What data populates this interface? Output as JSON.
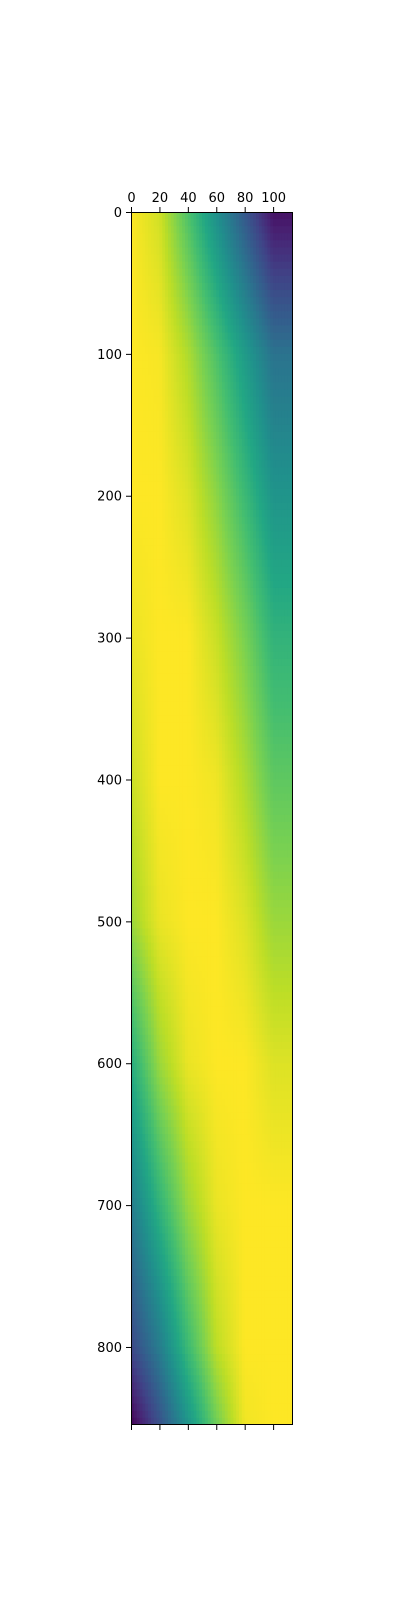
{
  "chart_data": {
    "type": "heatmap",
    "title": "",
    "xlabel": "",
    "ylabel": "",
    "colormap": "viridis",
    "x_range": [
      0,
      114
    ],
    "y_range": [
      0,
      855
    ],
    "x_axis_position": "top",
    "y_axis_inverted": true,
    "grid": false,
    "colorbar": false,
    "x_ticks": [
      {
        "value": 0,
        "label": "0"
      },
      {
        "value": 20,
        "label": "20"
      },
      {
        "value": 40,
        "label": "40"
      },
      {
        "value": 60,
        "label": "60"
      },
      {
        "value": 80,
        "label": "80"
      },
      {
        "value": 100,
        "label": "100"
      }
    ],
    "y_ticks": [
      {
        "value": 0,
        "label": "0"
      },
      {
        "value": 100,
        "label": "100"
      },
      {
        "value": 200,
        "label": "200"
      },
      {
        "value": 300,
        "label": "300"
      },
      {
        "value": 400,
        "label": "400"
      },
      {
        "value": 500,
        "label": "500"
      },
      {
        "value": 600,
        "label": "600"
      },
      {
        "value": 700,
        "label": "700"
      },
      {
        "value": 800,
        "label": "800"
      }
    ],
    "color_samples": [
      {
        "row": 0,
        "values": [
          1.0,
          0.93,
          0.72,
          0.5,
          0.28,
          0.05
        ]
      },
      {
        "row": 100,
        "values": [
          1.0,
          0.99,
          0.88,
          0.72,
          0.55,
          0.38
        ]
      },
      {
        "row": 200,
        "values": [
          1.0,
          1.0,
          0.95,
          0.83,
          0.68,
          0.52
        ]
      },
      {
        "row": 300,
        "values": [
          0.97,
          1.0,
          1.0,
          0.92,
          0.8,
          0.65
        ]
      },
      {
        "row": 400,
        "values": [
          0.92,
          1.0,
          1.0,
          0.98,
          0.88,
          0.75
        ]
      },
      {
        "row": 500,
        "values": [
          0.85,
          0.97,
          1.0,
          1.0,
          0.95,
          0.85
        ]
      },
      {
        "row": 600,
        "values": [
          0.62,
          0.85,
          0.97,
          1.0,
          1.0,
          0.95
        ]
      },
      {
        "row": 700,
        "values": [
          0.42,
          0.65,
          0.85,
          0.97,
          1.0,
          1.0
        ]
      },
      {
        "row": 800,
        "values": [
          0.22,
          0.42,
          0.68,
          0.9,
          1.0,
          1.0
        ]
      },
      {
        "row": 855,
        "values": [
          0.0,
          0.25,
          0.52,
          0.78,
          0.98,
          1.0
        ]
      }
    ],
    "color_sample_columns": [
      0,
      20,
      40,
      60,
      80,
      100
    ]
  }
}
